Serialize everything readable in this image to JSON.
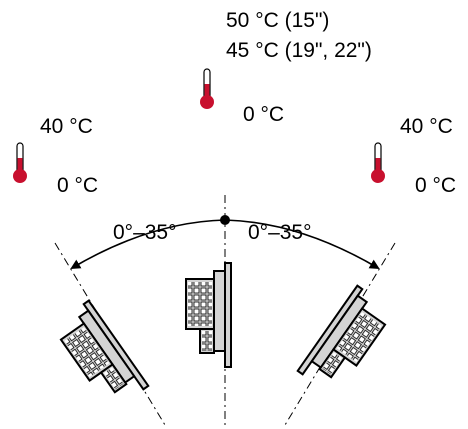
{
  "colors": {
    "thermometer_fill": "#c8102e",
    "device_fill": "#d4d4d4",
    "line": "#000000"
  },
  "center": {
    "temp_max_15": "50 °C (15\")",
    "temp_max_19_22": "45 °C (19\", 22\")",
    "temp_min": "0 °C"
  },
  "left": {
    "temp_max": "40 °C",
    "temp_min": "0 °C",
    "tilt_range": "0°–35°"
  },
  "right": {
    "temp_max": "40 °C",
    "temp_min": "0 °C",
    "tilt_range": "0°–35°"
  },
  "icons": [
    "thermometer-icon",
    "device-icon",
    "tilt-arrow-icon"
  ]
}
